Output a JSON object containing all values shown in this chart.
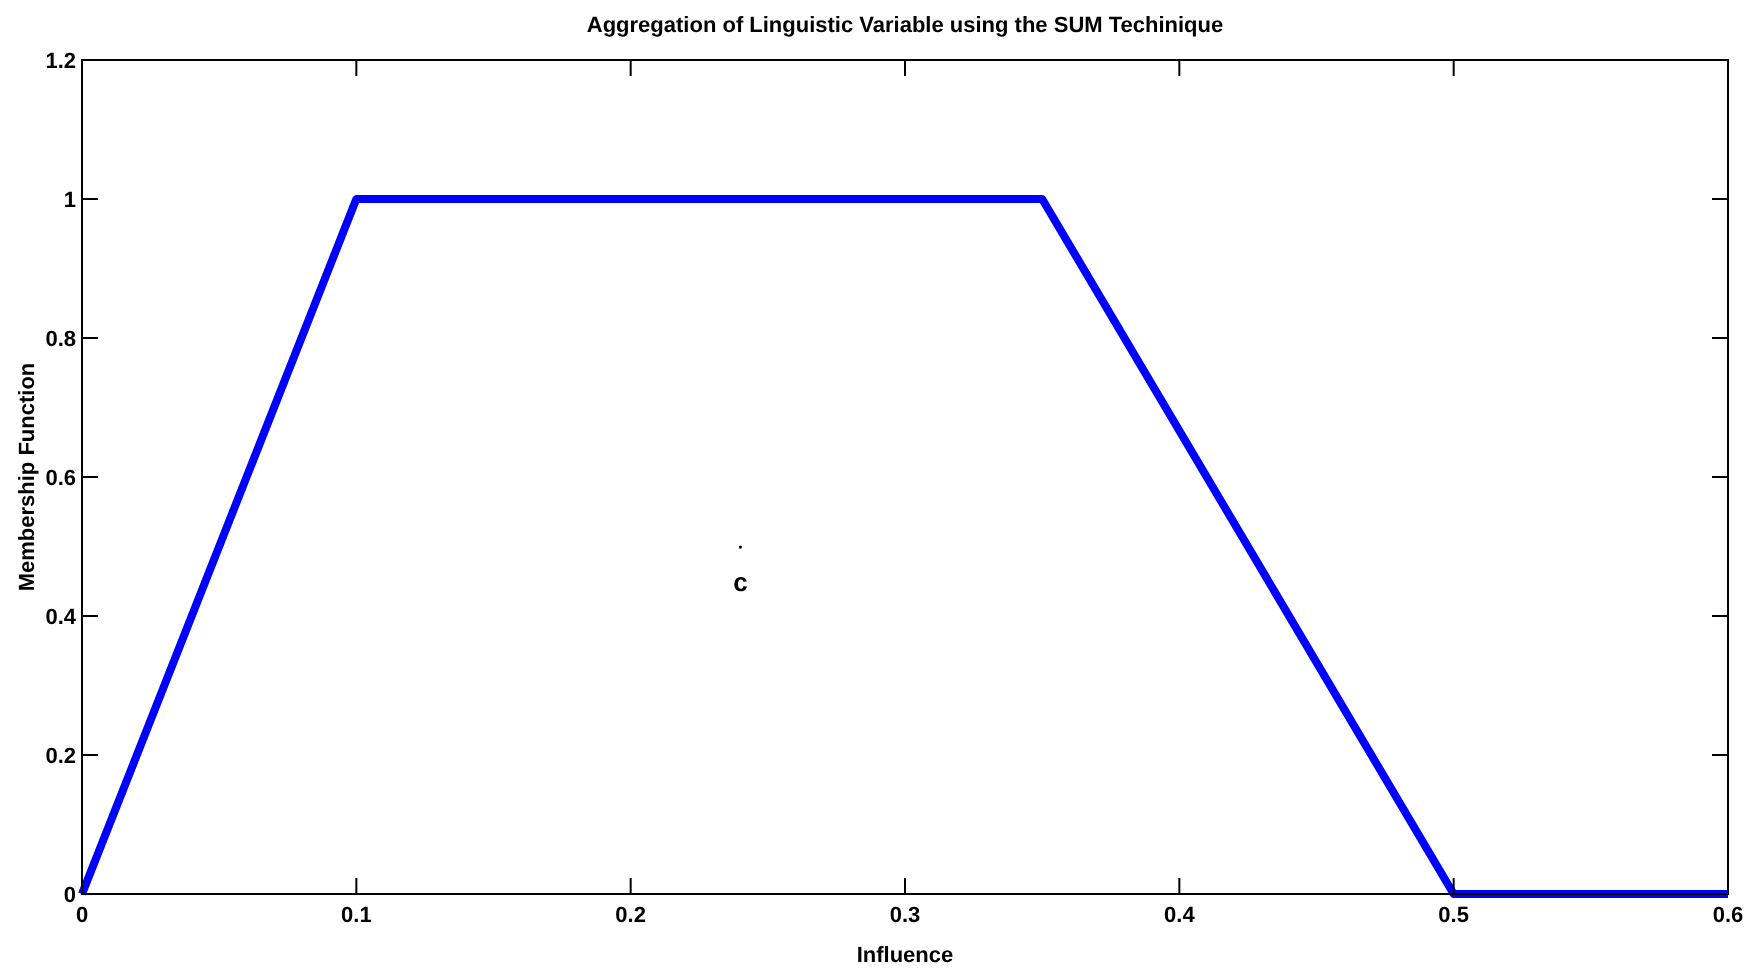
{
  "chart_data": {
    "type": "line",
    "title": "Aggregation of Linguistic Variable using the SUM Techinique",
    "xlabel": "Influence",
    "ylabel": "Membership Function",
    "x": [
      0,
      0.1,
      0.35,
      0.5,
      0.6
    ],
    "series": [
      {
        "color": "#0000ff",
        "values": [
          0,
          1,
          1,
          0,
          0
        ]
      }
    ],
    "xlim": [
      0,
      0.6
    ],
    "xticks": [
      0,
      0.1,
      0.2,
      0.3,
      0.4,
      0.5,
      0.6
    ],
    "ylim": [
      0,
      1.2
    ],
    "yticks": [
      0,
      0.2,
      0.4,
      0.6,
      0.8,
      1,
      1.2
    ],
    "annotations": [
      "c"
    ],
    "grid": false,
    "marker": "none",
    "line_style": "solid"
  }
}
